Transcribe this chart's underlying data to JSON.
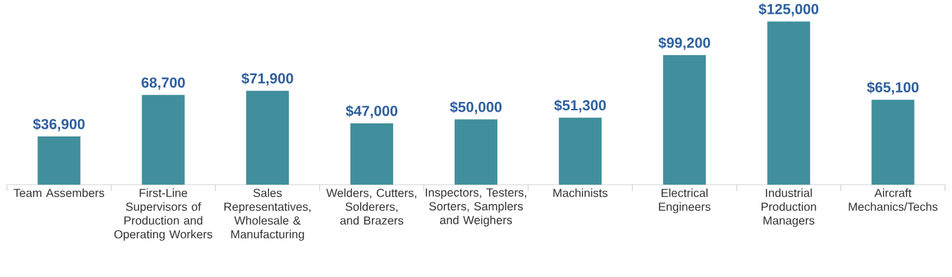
{
  "chart_data": {
    "type": "bar",
    "categories": [
      "Team Assembers",
      "First-Line Supervisors of Production and Operating Workers",
      "Sales Representatives, Wholesale & Manufacturing",
      "Welders, Cutters, Solderers, and Brazers",
      "Inspectors, Testers, Sorters, Samplers and Weighers",
      "Machinists",
      "Electrical Engineers",
      "Industrial Production Managers",
      "Aircraft Mechanics/Techs"
    ],
    "values": [
      36900,
      68700,
      71900,
      47000,
      50000,
      51300,
      99200,
      125000,
      65100
    ],
    "value_labels": [
      "$36,900",
      "68,700",
      "$71,900",
      "$47,000",
      "$50,000",
      "$51,300",
      "$99,200",
      "$125,000",
      "$65,100"
    ],
    "color": "#418f9c"
  }
}
